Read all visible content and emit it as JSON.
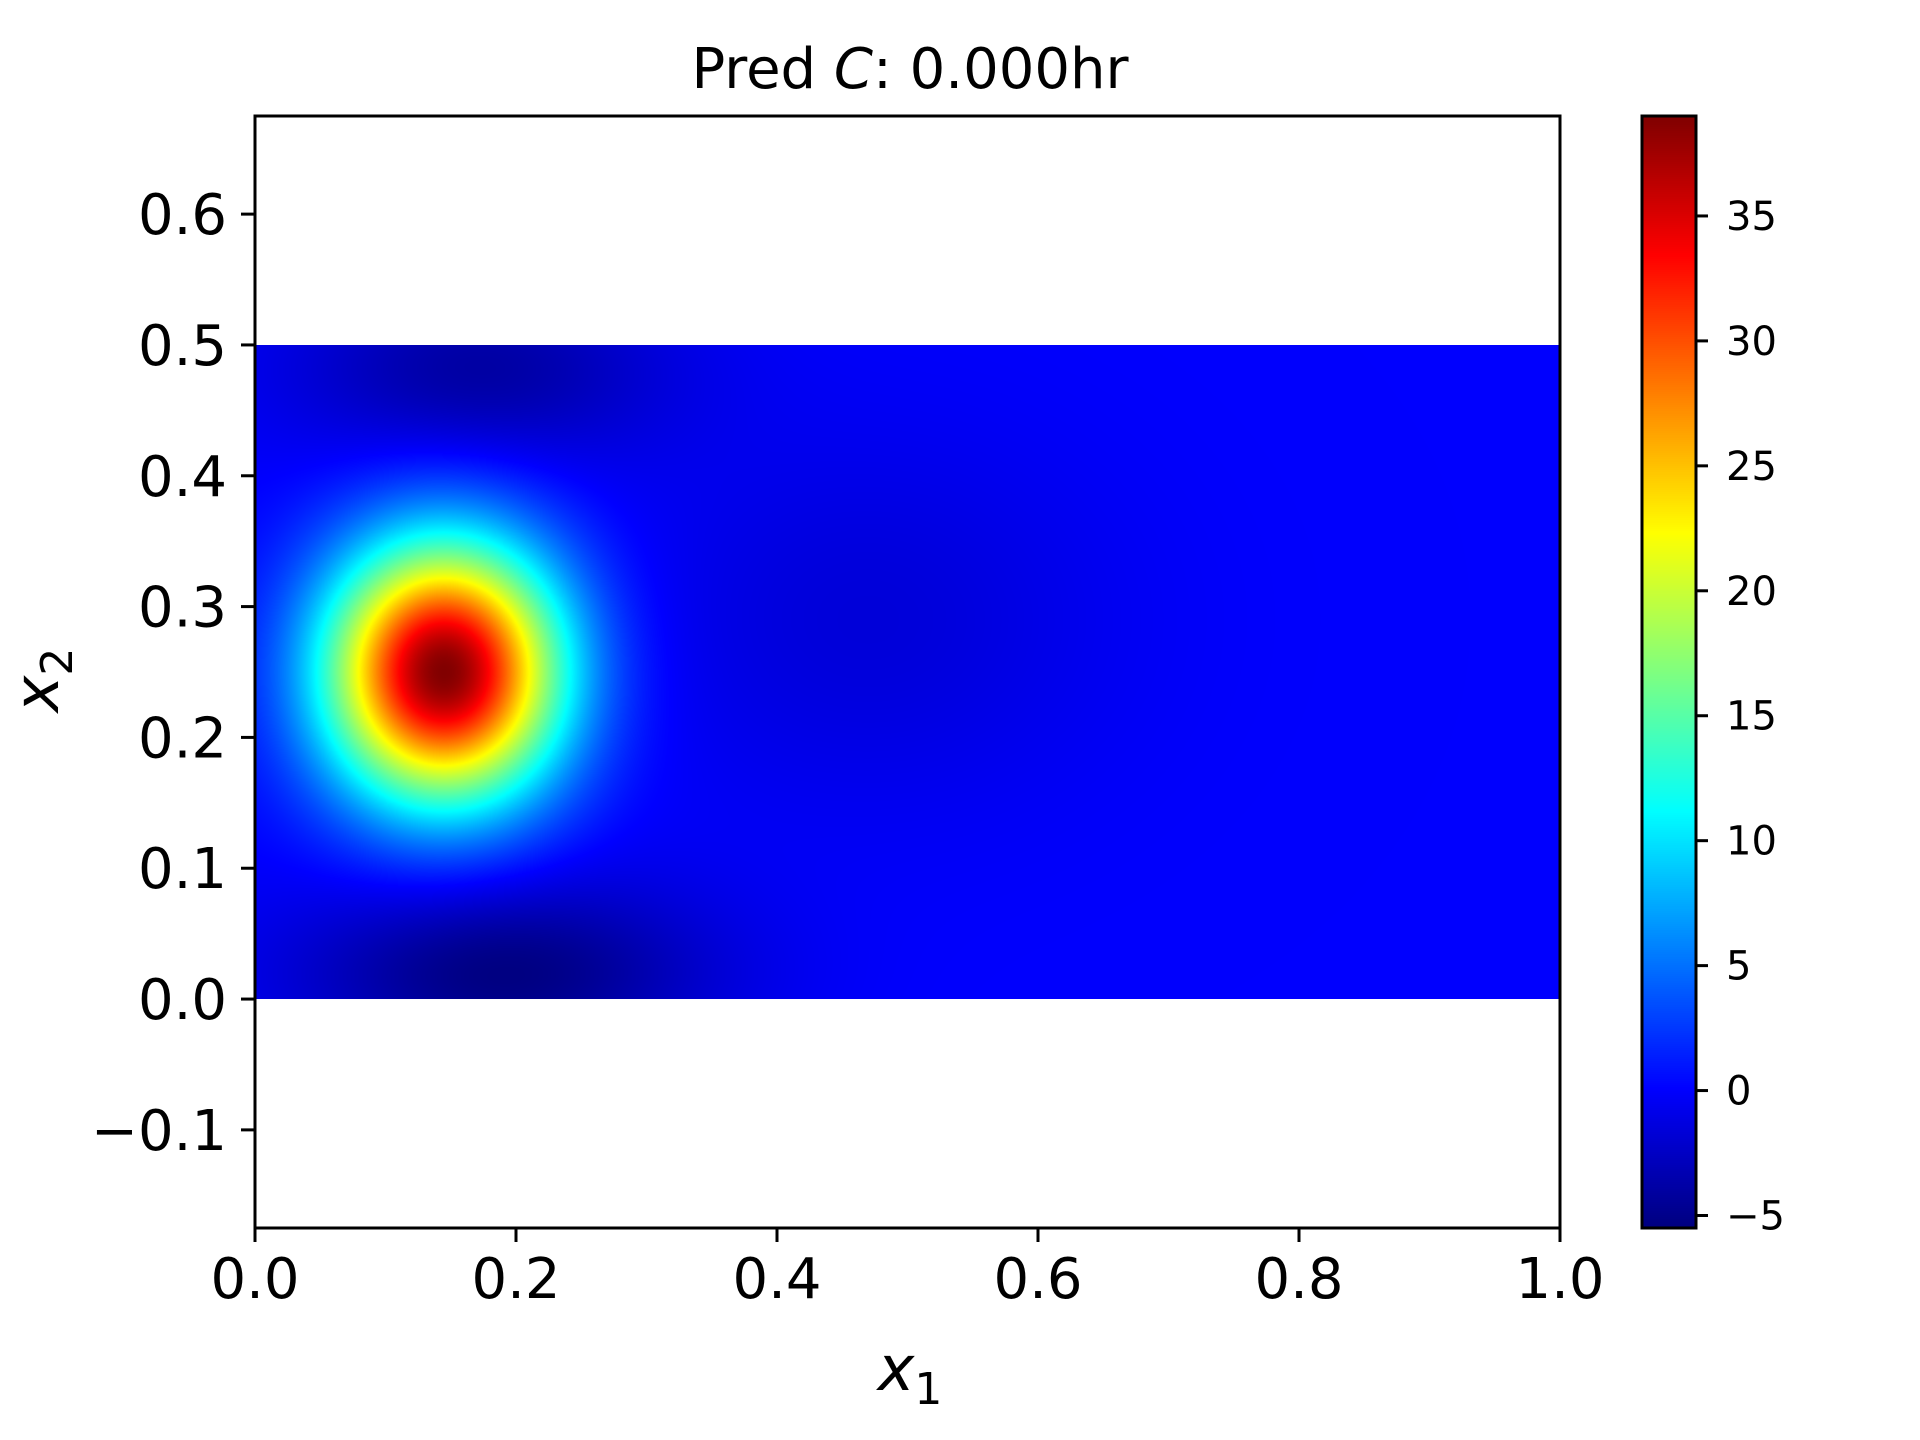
{
  "chart_data": {
    "type": "heatmap",
    "title": "Pred C: 0.000hr",
    "title_parts": {
      "prefix": "Pred ",
      "symbol": "C",
      "suffix": ": 0.000hr"
    },
    "xlabel": {
      "base": "x",
      "sub": "1"
    },
    "ylabel": {
      "base": "x",
      "sub": "2"
    },
    "xlim": [
      0.0,
      1.0
    ],
    "ylim": [
      -0.175,
      0.675
    ],
    "xticks": [
      0.0,
      0.2,
      0.4,
      0.6,
      0.8,
      1.0
    ],
    "xtick_labels": [
      "0.0",
      "0.2",
      "0.4",
      "0.6",
      "0.8",
      "1.0"
    ],
    "yticks": [
      -0.1,
      0.0,
      0.1,
      0.2,
      0.3,
      0.4,
      0.5,
      0.6
    ],
    "ytick_labels": [
      "−0.1",
      "0.0",
      "0.1",
      "0.2",
      "0.3",
      "0.4",
      "0.5",
      "0.6"
    ],
    "domain": {
      "x": [
        0.0,
        1.0
      ],
      "y": [
        0.0,
        0.5
      ]
    },
    "colormap": "jet",
    "colorbar": {
      "vmin": -5.5,
      "vmax": 39.0,
      "ticks": [
        -5,
        0,
        5,
        10,
        15,
        20,
        25,
        30,
        35
      ],
      "tick_labels": [
        "−5",
        "0",
        "5",
        "10",
        "15",
        "20",
        "25",
        "30",
        "35"
      ]
    },
    "field": {
      "background_value": 0.0,
      "features": [
        {
          "kind": "peak",
          "x": 0.145,
          "y": 0.25,
          "value": 39.0,
          "sx": 0.062,
          "sy": 0.068
        },
        {
          "kind": "trough",
          "x": 0.19,
          "y": 0.02,
          "value": -5.5,
          "sx": 0.11,
          "sy": 0.05
        },
        {
          "kind": "trough",
          "x": 0.17,
          "y": 0.48,
          "value": -4.0,
          "sx": 0.1,
          "sy": 0.05
        },
        {
          "kind": "trough",
          "x": 0.47,
          "y": 0.29,
          "value": -1.6,
          "sx": 0.13,
          "sy": 0.1
        }
      ]
    },
    "grid": false,
    "legend": "none"
  }
}
